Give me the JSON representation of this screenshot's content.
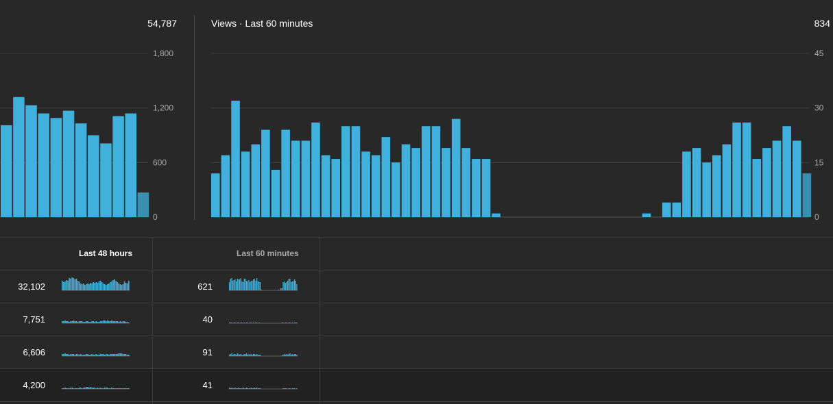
{
  "left_chart": {
    "total": "54,787",
    "y_ticks": [
      "1,800",
      "1,200",
      "600",
      "0"
    ],
    "ylim": [
      0,
      1800
    ],
    "bar_color": "#3fb1dc",
    "last_bar_color": "#3a8fb0",
    "values": [
      1010,
      1320,
      1230,
      1140,
      1090,
      1170,
      1030,
      900,
      810,
      1110,
      1140,
      270
    ]
  },
  "right_chart": {
    "title": "Views · Last 60 minutes",
    "total": "834",
    "y_ticks": [
      "45",
      "30",
      "15",
      "0"
    ],
    "ylim": [
      0,
      45
    ],
    "bar_color": "#3fb1dc",
    "last_bar_color": "#3a8fb0",
    "values": [
      12,
      17,
      32,
      18,
      20,
      24,
      13,
      24,
      21,
      21,
      26,
      17,
      16,
      25,
      25,
      18,
      17,
      22,
      15,
      20,
      19,
      25,
      25,
      19,
      27,
      19,
      16,
      16,
      1,
      0,
      0,
      0,
      0,
      0,
      0,
      0,
      0,
      0,
      0,
      0,
      0,
      0,
      0,
      1,
      0,
      4,
      4,
      18,
      19,
      15,
      17,
      20,
      26,
      26,
      16,
      19,
      21,
      25,
      21,
      12
    ]
  },
  "table": {
    "header_48h": "Last 48 hours",
    "header_60m": "Last 60 minutes",
    "accent": "#3fb1dc",
    "rows": [
      {
        "views_48h": "32,102",
        "views_60m": "621",
        "spark_48h": [
          14,
          12,
          13,
          15,
          14,
          18,
          17,
          19,
          18,
          16,
          17,
          14,
          13,
          10,
          9,
          10,
          8,
          9,
          10,
          9,
          11,
          10,
          12,
          11,
          12,
          11,
          13,
          14,
          12,
          10,
          9,
          8,
          9,
          10,
          12,
          13,
          15,
          16,
          14,
          12,
          10,
          9,
          8,
          9,
          13,
          11,
          10,
          14
        ],
        "spark_60m": [
          12,
          17,
          18,
          14,
          15,
          16,
          13,
          17,
          16,
          16,
          18,
          13,
          12,
          17,
          17,
          14,
          13,
          15,
          12,
          14,
          14,
          16,
          17,
          14,
          18,
          14,
          12,
          12,
          1,
          0,
          0,
          0,
          0,
          0,
          0,
          0,
          0,
          0,
          0,
          0,
          0,
          0,
          0,
          1,
          0,
          3,
          3,
          12,
          13,
          11,
          12,
          14,
          17,
          17,
          12,
          13,
          14,
          16,
          14,
          9
        ]
      },
      {
        "views_48h": "7,751",
        "views_60m": "40",
        "spark_48h": [
          3,
          3,
          4,
          3,
          3,
          2,
          3,
          3,
          4,
          3,
          3,
          2,
          3,
          3,
          3,
          2,
          2,
          3,
          3,
          2,
          2,
          3,
          3,
          2,
          3,
          2,
          2,
          3,
          3,
          4,
          4,
          3,
          4,
          3,
          3,
          4,
          3,
          3,
          3,
          3,
          2,
          3,
          2,
          3,
          3,
          2,
          2,
          1
        ],
        "spark_60m": [
          1,
          1,
          1,
          0,
          1,
          1,
          0,
          1,
          1,
          0,
          1,
          1,
          0,
          1,
          0,
          1,
          1,
          0,
          1,
          1,
          0,
          1,
          0,
          1,
          1,
          0,
          1,
          0,
          0,
          0,
          0,
          0,
          0,
          0,
          0,
          0,
          0,
          0,
          0,
          0,
          0,
          0,
          0,
          0,
          0,
          0,
          1,
          1,
          0,
          1,
          1,
          0,
          1,
          1,
          0,
          1,
          0,
          1,
          1,
          1
        ]
      },
      {
        "views_48h": "6,606",
        "views_60m": "91",
        "spark_48h": [
          3,
          3,
          4,
          3,
          3,
          2,
          3,
          3,
          3,
          2,
          3,
          3,
          2,
          3,
          2,
          2,
          2,
          3,
          3,
          2,
          2,
          3,
          2,
          2,
          3,
          2,
          2,
          3,
          3,
          3,
          2,
          3,
          3,
          2,
          3,
          3,
          3,
          3,
          3,
          3,
          4,
          4,
          4,
          3,
          3,
          3,
          2,
          2
        ],
        "spark_60m": [
          2,
          3,
          4,
          2,
          3,
          3,
          2,
          4,
          3,
          2,
          3,
          2,
          2,
          3,
          3,
          4,
          2,
          3,
          2,
          3,
          2,
          3,
          3,
          2,
          3,
          2,
          2,
          2,
          0,
          0,
          0,
          0,
          0,
          0,
          0,
          0,
          0,
          0,
          0,
          0,
          0,
          0,
          0,
          0,
          0,
          0,
          1,
          2,
          3,
          2,
          3,
          2,
          3,
          4,
          2,
          3,
          2,
          3,
          3,
          2
        ]
      },
      {
        "views_48h": "4,200",
        "views_60m": "41",
        "spark_48h": [
          1,
          1,
          2,
          1,
          1,
          1,
          2,
          2,
          1,
          1,
          1,
          1,
          2,
          2,
          1,
          2,
          2,
          3,
          3,
          2,
          3,
          2,
          2,
          2,
          1,
          2,
          1,
          2,
          1,
          1,
          2,
          2,
          2,
          1,
          1,
          2,
          1,
          1,
          1,
          1,
          1,
          1,
          1,
          1,
          1,
          1,
          1,
          1
        ],
        "spark_60m": [
          2,
          1,
          2,
          1,
          1,
          2,
          1,
          1,
          2,
          1,
          1,
          1,
          2,
          1,
          1,
          2,
          1,
          1,
          1,
          2,
          1,
          1,
          2,
          1,
          2,
          1,
          1,
          1,
          0,
          0,
          0,
          0,
          0,
          0,
          0,
          0,
          0,
          0,
          0,
          0,
          0,
          0,
          0,
          0,
          0,
          0,
          0,
          1,
          1,
          1,
          1,
          0,
          1,
          1,
          0,
          1,
          1,
          1,
          0,
          1
        ]
      }
    ]
  }
}
